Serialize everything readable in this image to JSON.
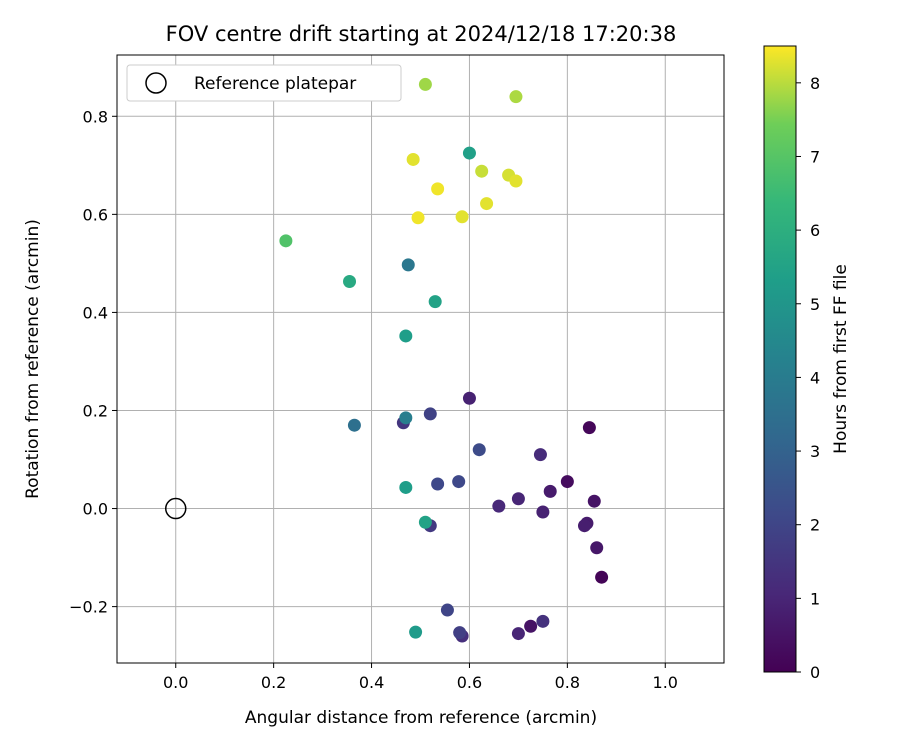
{
  "chart_data": {
    "type": "scatter",
    "title": "FOV centre drift starting at 2024/12/18 17:20:38",
    "xlabel": "Angular distance from reference (arcmin)",
    "ylabel": "Rotation from reference (arcmin)",
    "xlim": [
      -0.12,
      1.12
    ],
    "ylim": [
      -0.315,
      0.925
    ],
    "x_ticks": [
      0.0,
      0.2,
      0.4,
      0.6,
      0.8,
      1.0
    ],
    "x_tick_labels": [
      "0.0",
      "0.2",
      "0.4",
      "0.6",
      "0.8",
      "1.0"
    ],
    "y_ticks": [
      -0.2,
      0.0,
      0.2,
      0.4,
      0.6,
      0.8
    ],
    "y_tick_labels": [
      "−0.2",
      "0.0",
      "0.2",
      "0.4",
      "0.6",
      "0.8"
    ],
    "grid": true,
    "legend": {
      "position": "top-left",
      "entries": [
        "Reference platepar"
      ]
    },
    "reference_point": {
      "x": 0.0,
      "y": 0.0,
      "label": "Reference platepar"
    },
    "colorbar": {
      "label": "Hours from first FF file",
      "colormap": "viridis",
      "range": [
        0,
        8.5
      ],
      "ticks": [
        0,
        1,
        2,
        3,
        4,
        5,
        6,
        7,
        8
      ],
      "tick_labels": [
        "0",
        "1",
        "2",
        "3",
        "4",
        "5",
        "6",
        "7",
        "8"
      ]
    },
    "points": [
      {
        "x": 0.87,
        "y": -0.14,
        "c": 0.1
      },
      {
        "x": 0.845,
        "y": 0.165,
        "c": 0.15
      },
      {
        "x": 0.8,
        "y": 0.055,
        "c": 0.3
      },
      {
        "x": 0.855,
        "y": 0.015,
        "c": 0.5
      },
      {
        "x": 0.86,
        "y": -0.08,
        "c": 0.6
      },
      {
        "x": 0.84,
        "y": -0.03,
        "c": 0.7
      },
      {
        "x": 0.835,
        "y": -0.035,
        "c": 0.8
      },
      {
        "x": 0.765,
        "y": 0.035,
        "c": 0.7
      },
      {
        "x": 0.75,
        "y": -0.007,
        "c": 0.9
      },
      {
        "x": 0.745,
        "y": 0.11,
        "c": 1.2
      },
      {
        "x": 0.7,
        "y": 0.02,
        "c": 1.0
      },
      {
        "x": 0.66,
        "y": 0.005,
        "c": 1.1
      },
      {
        "x": 0.6,
        "y": 0.225,
        "c": 0.9
      },
      {
        "x": 0.725,
        "y": -0.24,
        "c": 0.5
      },
      {
        "x": 0.7,
        "y": -0.255,
        "c": 1.0
      },
      {
        "x": 0.75,
        "y": -0.23,
        "c": 1.4
      },
      {
        "x": 0.585,
        "y": -0.26,
        "c": 1.3
      },
      {
        "x": 0.58,
        "y": -0.253,
        "c": 1.8
      },
      {
        "x": 0.555,
        "y": -0.207,
        "c": 2.0
      },
      {
        "x": 0.52,
        "y": -0.035,
        "c": 1.6
      },
      {
        "x": 0.465,
        "y": 0.175,
        "c": 1.5
      },
      {
        "x": 0.52,
        "y": 0.193,
        "c": 1.9
      },
      {
        "x": 0.62,
        "y": 0.12,
        "c": 2.2
      },
      {
        "x": 0.578,
        "y": 0.055,
        "c": 2.1
      },
      {
        "x": 0.535,
        "y": 0.05,
        "c": 2.1
      },
      {
        "x": 0.365,
        "y": 0.17,
        "c": 3.5
      },
      {
        "x": 0.47,
        "y": 0.185,
        "c": 4.1
      },
      {
        "x": 0.475,
        "y": 0.497,
        "c": 3.8
      },
      {
        "x": 0.47,
        "y": 0.043,
        "c": 5.3
      },
      {
        "x": 0.51,
        "y": -0.028,
        "c": 5.5
      },
      {
        "x": 0.49,
        "y": -0.252,
        "c": 5.2
      },
      {
        "x": 0.47,
        "y": 0.352,
        "c": 5.3
      },
      {
        "x": 0.53,
        "y": 0.422,
        "c": 5.5
      },
      {
        "x": 0.355,
        "y": 0.463,
        "c": 5.8
      },
      {
        "x": 0.6,
        "y": 0.725,
        "c": 5.4
      },
      {
        "x": 0.225,
        "y": 0.546,
        "c": 6.9
      },
      {
        "x": 0.51,
        "y": 0.865,
        "c": 7.8
      },
      {
        "x": 0.695,
        "y": 0.84,
        "c": 7.9
      },
      {
        "x": 0.625,
        "y": 0.688,
        "c": 8.1
      },
      {
        "x": 0.68,
        "y": 0.68,
        "c": 8.2
      },
      {
        "x": 0.695,
        "y": 0.668,
        "c": 8.3
      },
      {
        "x": 0.485,
        "y": 0.712,
        "c": 8.3
      },
      {
        "x": 0.535,
        "y": 0.652,
        "c": 8.4
      },
      {
        "x": 0.635,
        "y": 0.622,
        "c": 8.3
      },
      {
        "x": 0.495,
        "y": 0.593,
        "c": 8.4
      },
      {
        "x": 0.585,
        "y": 0.595,
        "c": 8.3
      }
    ]
  }
}
